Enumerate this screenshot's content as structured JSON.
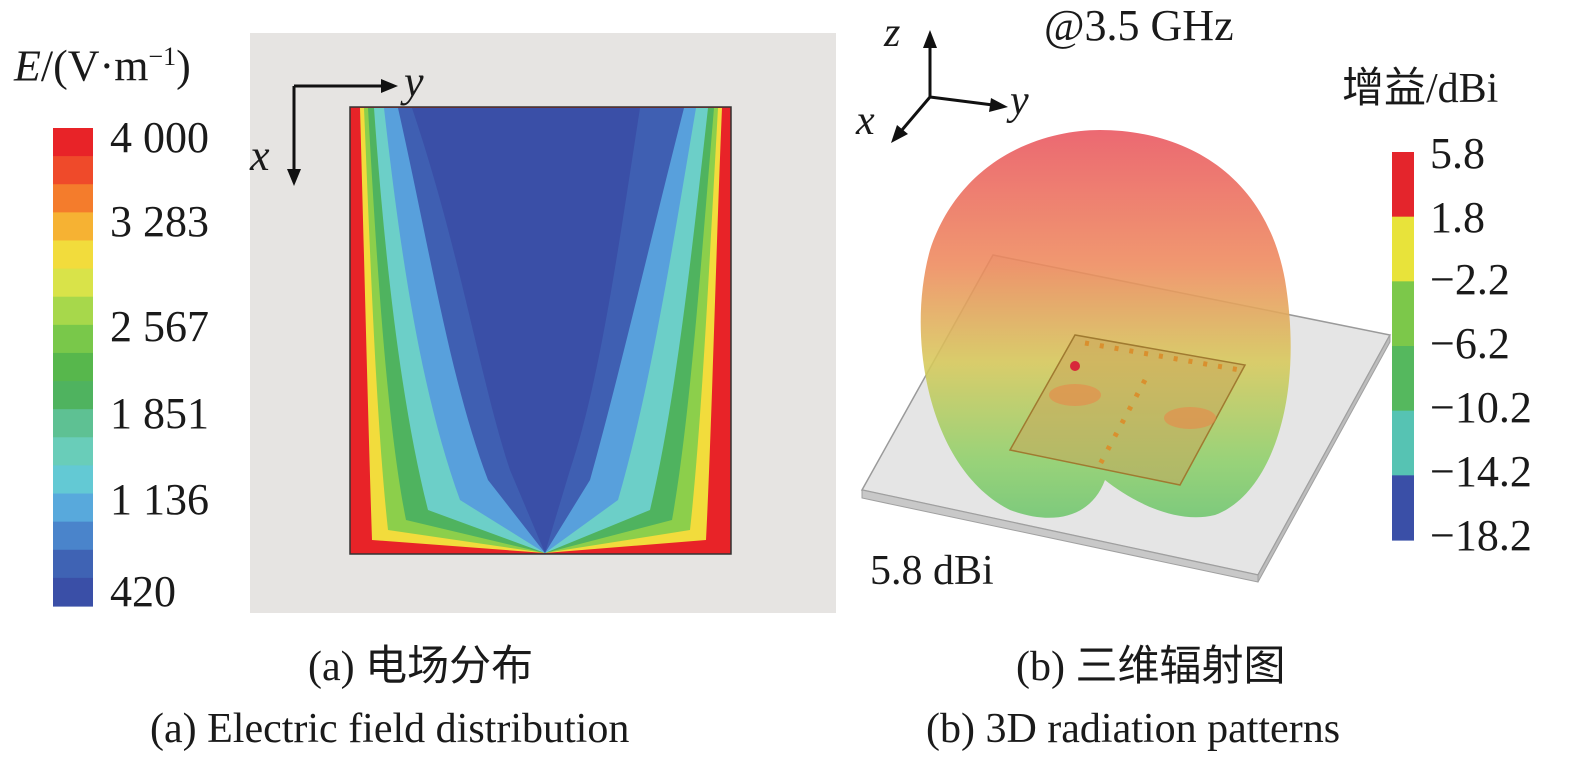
{
  "panel_a": {
    "legend_title_italic": "E",
    "legend_title_rest": "/(V·m",
    "legend_title_sup": "−1",
    "legend_title_close": ")",
    "legend_ticks": [
      "4 000",
      "3 283",
      "2 567",
      "1 851",
      "1 136",
      "420"
    ],
    "legend_colors": [
      "#e82328",
      "#ef4a2a",
      "#f47c2c",
      "#f6b233",
      "#f2dc3c",
      "#d9e349",
      "#a7d84b",
      "#79c84a",
      "#57b74c",
      "#4fb35f",
      "#5ec193",
      "#69cdb9",
      "#63c9d4",
      "#58a9dc",
      "#4a84cb",
      "#3f63b4",
      "#3a4fa7"
    ],
    "axis_y": "y",
    "axis_x": "x",
    "caption_cn": "(a) 电场分布",
    "caption_en": "(a) Electric field distribution"
  },
  "panel_b": {
    "freq_label": "@3.5 GHz",
    "axis_z": "z",
    "axis_y": "y",
    "axis_x": "x",
    "legend_title": "增益/dBi",
    "legend_ticks": [
      "5.8",
      "1.8",
      "−2.2",
      "−6.2",
      "−10.2",
      "−14.2",
      "−18.2"
    ],
    "legend_colors": [
      "#e4252c",
      "#e8e33a",
      "#7cc84a",
      "#55b85e",
      "#56c3b3",
      "#3a4fa7"
    ],
    "peak_label": "5.8 dBi",
    "caption_cn": "(b) 三维辐射图",
    "caption_en": "(b) 3D radiation patterns"
  },
  "colors": {
    "field_low": "#3a4fa7",
    "field_high": "#e82328",
    "plot_bg": "#e6e4e2"
  }
}
